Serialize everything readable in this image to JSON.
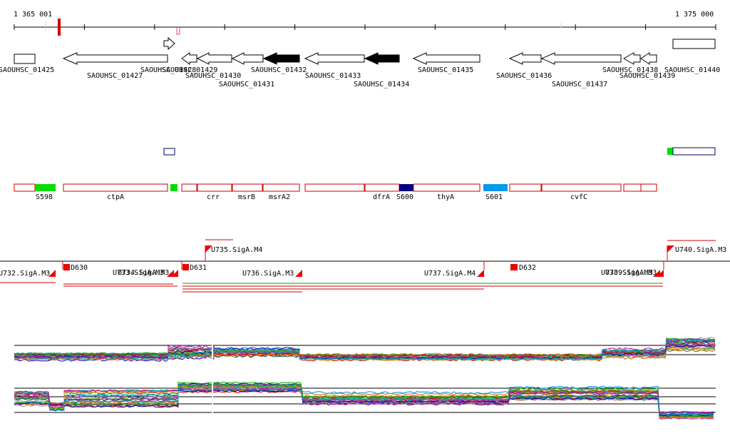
{
  "ruler": {
    "start_label": "1 365 001",
    "end_label": "1 375 000"
  },
  "genes": [
    {
      "label": "SAOUHSC_01425",
      "strand": "+",
      "fill": "#ffffff"
    },
    {
      "label": "SAOUHSC_01427",
      "strand": "-",
      "fill": "#ffffff"
    },
    {
      "label": "SAOUHSC_01428",
      "strand": "+",
      "fill": "#ffffff"
    },
    {
      "label": "SAOUHSC_01429",
      "strand": "-",
      "fill": "#ffffff"
    },
    {
      "label": "SAOUHSC_01430",
      "strand": "-",
      "fill": "#ffffff"
    },
    {
      "label": "SAOUHSC_01431",
      "strand": "-",
      "fill": "#ffffff"
    },
    {
      "label": "SAOUHSC_01432",
      "strand": "-",
      "fill": "#000000"
    },
    {
      "label": "SAOUHSC_01433",
      "strand": "-",
      "fill": "#ffffff"
    },
    {
      "label": "SAOUHSC_01434",
      "strand": "-",
      "fill": "#000000"
    },
    {
      "label": "SAOUHSC_01435",
      "strand": "-",
      "fill": "#ffffff"
    },
    {
      "label": "SAOUHSC_01436",
      "strand": "-",
      "fill": "#ffffff"
    },
    {
      "label": "SAOUHSC_01437",
      "strand": "-",
      "fill": "#ffffff"
    },
    {
      "label": "SAOUHSC_01438",
      "strand": "-",
      "fill": "#ffffff"
    },
    {
      "label": "SAOUHSC_01439",
      "strand": "-",
      "fill": "#ffffff"
    },
    {
      "label": "SAOUHSC_01440",
      "strand": "+",
      "fill": "#ffffff"
    }
  ],
  "segments": [
    {
      "label": "S598",
      "kind": "srna",
      "color": "#00dd00"
    },
    {
      "label": "ctpA",
      "kind": "gene",
      "color": "#cc0000"
    },
    {
      "label": "",
      "kind": "srna",
      "color": "#00dd00"
    },
    {
      "label": "crr",
      "kind": "gene",
      "color": "#cc0000"
    },
    {
      "label": "msrB",
      "kind": "gene",
      "color": "#cc0000"
    },
    {
      "label": "msrA2",
      "kind": "gene",
      "color": "#cc0000"
    },
    {
      "label": "dfrA",
      "kind": "gene",
      "color": "#cc0000"
    },
    {
      "label": "S600",
      "kind": "srna",
      "color": "#000080"
    },
    {
      "label": "thyA",
      "kind": "gene",
      "color": "#cc0000"
    },
    {
      "label": "S601",
      "kind": "srna",
      "color": "#0099ee"
    },
    {
      "label": "cvfC",
      "kind": "gene",
      "color": "#cc0000"
    }
  ],
  "promoters": [
    {
      "label": "U732.SigA.M3"
    },
    {
      "label": "D630"
    },
    {
      "label": "U733.SigA.M3"
    },
    {
      "label": "U734.SigA.M3"
    },
    {
      "label": "D631"
    },
    {
      "label": "U735.SigA.M4"
    },
    {
      "label": "U736.SigA.M3"
    },
    {
      "label": "U737.SigA.M4"
    },
    {
      "label": "D632"
    },
    {
      "label": "U738.SigA.M3"
    },
    {
      "label": "U739.SigA.M3"
    },
    {
      "label": "U740.SigA.M3"
    }
  ],
  "colors": {
    "gene_outline": "#000000",
    "segment_outline": "#cc0000",
    "promoter_flag": "#ee0000",
    "terminator_line": "#cc0000",
    "terminator_green": "#00aa00",
    "box_outline": "#000066"
  }
}
